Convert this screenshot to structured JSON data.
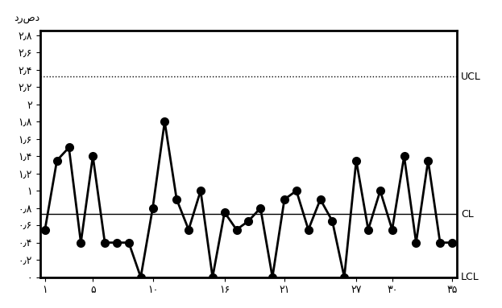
{
  "chart_data": {
    "type": "line",
    "y_label": "درصد",
    "x": [
      1,
      2,
      3,
      4,
      5,
      6,
      7,
      8,
      9,
      10,
      11,
      12,
      13,
      14,
      15,
      16,
      17,
      18,
      19,
      20,
      21,
      22,
      23,
      24,
      25,
      26,
      27,
      28,
      29,
      30,
      31,
      32,
      33,
      34,
      35
    ],
    "values": [
      0.55,
      1.35,
      1.5,
      0.4,
      1.4,
      0.4,
      0.4,
      0.4,
      0,
      0.8,
      1.8,
      0.9,
      0.55,
      1.0,
      0,
      0.75,
      0.55,
      0.65,
      0.8,
      0,
      0.9,
      1.0,
      0.55,
      0.9,
      0.65,
      0,
      1.35,
      0.55,
      1.0,
      0.55,
      1.4,
      0.4,
      1.35,
      0.4,
      0.4
    ],
    "color": "#000000",
    "marker": "circle",
    "line_style": "solid",
    "control_limits": [
      {
        "name": "UCL",
        "value": 2.32,
        "line_style": "dotted"
      },
      {
        "name": "CL",
        "value": 0.73,
        "line_style": "solid"
      },
      {
        "name": "LCL",
        "value": 0,
        "line_style": "solid"
      }
    ],
    "xlim": [
      0.6,
      35.4
    ],
    "xticks": [
      {
        "value": 1,
        "label": "۱"
      },
      {
        "value": 5,
        "label": "۵"
      },
      {
        "value": 10,
        "label": "۱۰"
      },
      {
        "value": 16,
        "label": "۱۶"
      },
      {
        "value": 21,
        "label": "۲۱"
      },
      {
        "value": 27,
        "label": "۲۷"
      },
      {
        "value": 30,
        "label": "۳۰"
      },
      {
        "value": 35,
        "label": "۳۵"
      }
    ],
    "ylim": [
      0,
      2.85
    ],
    "yticks": [
      {
        "value": 0,
        "label": "۰"
      },
      {
        "value": 0.2,
        "label": "۰٫۲"
      },
      {
        "value": 0.4,
        "label": "۰٫۴"
      },
      {
        "value": 0.6,
        "label": "۰٫۶"
      },
      {
        "value": 0.8,
        "label": "۰٫۸"
      },
      {
        "value": 1,
        "label": "۱"
      },
      {
        "value": 1.2,
        "label": "۱٫۲"
      },
      {
        "value": 1.4,
        "label": "۱٫۴"
      },
      {
        "value": 1.6,
        "label": "۱٫۶"
      },
      {
        "value": 1.8,
        "label": "۱٫۸"
      },
      {
        "value": 2,
        "label": "۲"
      },
      {
        "value": 2.2,
        "label": "۲٫۲"
      },
      {
        "value": 2.4,
        "label": "۲٫۴"
      },
      {
        "value": 2.6,
        "label": "۲٫۶"
      },
      {
        "value": 2.8,
        "label": "۲٫۸"
      }
    ],
    "grid": false
  }
}
